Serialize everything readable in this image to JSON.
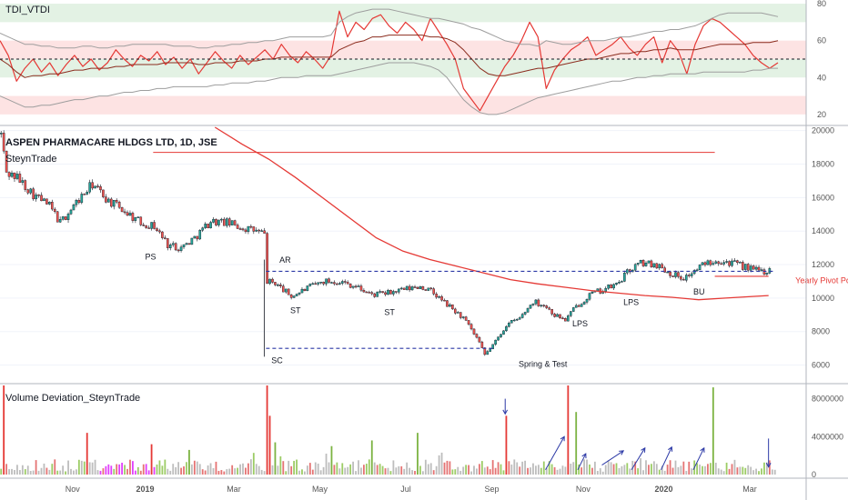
{
  "chart_data": [
    {
      "type": "line",
      "title": "TDI_VTDI",
      "ylim": [
        15,
        82
      ],
      "y_ticks": [
        20,
        40,
        60,
        80
      ],
      "bands": [
        {
          "from": 70,
          "to": 80,
          "color": "#e3f2e4"
        },
        {
          "from": 50,
          "to": 60,
          "color": "#fde3e3"
        },
        {
          "from": 40,
          "to": 50,
          "color": "#e3f2e4"
        },
        {
          "from": 20,
          "to": 30,
          "color": "#fde3e3"
        }
      ],
      "midline": 50,
      "series": [
        {
          "color": "#e53935",
          "values": [
            60,
            52,
            38,
            45,
            50,
            43,
            48,
            41,
            47,
            52,
            46,
            50,
            44,
            48,
            55,
            50,
            46,
            52,
            49,
            54,
            47,
            51,
            45,
            50,
            42,
            48,
            54,
            49,
            45,
            52,
            47,
            51,
            55,
            50,
            58,
            52,
            48,
            54,
            50,
            45,
            52,
            76,
            62,
            70,
            66,
            72,
            74,
            68,
            64,
            70,
            66,
            60,
            72,
            65,
            58,
            50,
            34,
            28,
            22,
            30,
            38,
            46,
            52,
            60,
            70,
            62,
            34,
            44,
            50,
            55,
            58,
            62,
            52,
            55,
            58,
            62,
            56,
            52,
            58,
            62,
            48,
            60,
            54,
            42,
            58,
            68,
            72,
            70,
            66,
            62,
            58,
            52,
            48,
            45,
            48
          ]
        },
        {
          "color": "#8b2c1e",
          "values": [
            50,
            47,
            43,
            40,
            41,
            41,
            42,
            42,
            43,
            44,
            44,
            45,
            45,
            45,
            46,
            46,
            47,
            47,
            47,
            47,
            48,
            48,
            48,
            48,
            47,
            47,
            48,
            48,
            48,
            49,
            49,
            49,
            50,
            50,
            51,
            51,
            51,
            51,
            51,
            51,
            51,
            55,
            57,
            59,
            60,
            62,
            62,
            63,
            63,
            63,
            63,
            63,
            62,
            62,
            61,
            59,
            55,
            50,
            45,
            42,
            41,
            41,
            42,
            43,
            44,
            45,
            45,
            46,
            47,
            48,
            49,
            50,
            50,
            51,
            52,
            53,
            53,
            54,
            54,
            55,
            55,
            56,
            55,
            55,
            55,
            56,
            57,
            58,
            58,
            58,
            58,
            59,
            59,
            59,
            60
          ]
        },
        {
          "color": "#9e9e9e",
          "values": [
            64,
            62,
            60,
            58,
            58,
            57,
            57,
            56,
            56,
            56,
            57,
            57,
            56,
            56,
            57,
            57,
            58,
            58,
            58,
            58,
            58,
            57,
            57,
            57,
            56,
            56,
            57,
            57,
            58,
            58,
            59,
            59,
            60,
            60,
            61,
            62,
            62,
            62,
            62,
            62,
            63,
            70,
            73,
            75,
            76,
            77,
            77,
            77,
            76,
            75,
            74,
            73,
            72,
            72,
            71,
            70,
            69,
            67,
            66,
            64,
            62,
            60,
            59,
            58,
            58,
            57,
            60,
            59,
            58,
            58,
            59,
            60,
            60,
            60,
            61,
            62,
            62,
            63,
            64,
            65,
            65,
            66,
            66,
            67,
            68,
            70,
            72,
            74,
            75,
            75,
            75,
            75,
            75,
            74,
            73
          ]
        },
        {
          "color": "#9e9e9e",
          "values": [
            30,
            28,
            26,
            24,
            24,
            25,
            25,
            26,
            27,
            28,
            28,
            29,
            30,
            30,
            31,
            32,
            32,
            33,
            33,
            34,
            34,
            35,
            35,
            35,
            35,
            35,
            36,
            36,
            37,
            37,
            37,
            38,
            38,
            39,
            40,
            40,
            40,
            41,
            41,
            41,
            41,
            42,
            43,
            44,
            45,
            46,
            47,
            48,
            48,
            48,
            48,
            47,
            46,
            44,
            40,
            34,
            28,
            24,
            21,
            20,
            20,
            21,
            23,
            25,
            27,
            29,
            30,
            31,
            32,
            33,
            34,
            35,
            36,
            37,
            38,
            38,
            39,
            40,
            40,
            41,
            41,
            42,
            42,
            42,
            42,
            43,
            43,
            43,
            43,
            43,
            43,
            44,
            44,
            45,
            45
          ]
        }
      ]
    },
    {
      "type": "candlestick",
      "title": "ASPEN PHARMACARE HLDGS LTD, 1D, JSE",
      "subtitle": "SteynTrade",
      "ylim": [
        5000,
        20200
      ],
      "y_ticks": [
        6000,
        8000,
        10000,
        12000,
        14000,
        16000,
        18000,
        20000
      ],
      "x_labels": [
        "Nov",
        "2019",
        "Mar",
        "May",
        "Jul",
        "Sep",
        "Nov",
        "2020",
        "Mar"
      ],
      "path": [
        [
          0,
          19800
        ],
        [
          2,
          17500
        ],
        [
          6,
          17200
        ],
        [
          12,
          16200
        ],
        [
          18,
          15500
        ],
        [
          22,
          14500
        ],
        [
          28,
          15700
        ],
        [
          34,
          16800
        ],
        [
          40,
          15800
        ],
        [
          46,
          15200
        ],
        [
          52,
          14500
        ],
        [
          57,
          14300
        ],
        [
          62,
          13200
        ],
        [
          67,
          13000
        ],
        [
          72,
          13600
        ],
        [
          78,
          14600
        ],
        [
          84,
          14500
        ],
        [
          90,
          14200
        ],
        [
          95,
          14000
        ],
        [
          98,
          13800
        ],
        [
          99,
          11000
        ],
        [
          102,
          10900
        ],
        [
          108,
          10100
        ],
        [
          114,
          10600
        ],
        [
          120,
          11000
        ],
        [
          126,
          11000
        ],
        [
          132,
          10700
        ],
        [
          138,
          10200
        ],
        [
          144,
          10300
        ],
        [
          150,
          10500
        ],
        [
          156,
          10700
        ],
        [
          160,
          10400
        ],
        [
          166,
          9600
        ],
        [
          172,
          8800
        ],
        [
          177,
          7600
        ],
        [
          180,
          6600
        ],
        [
          184,
          7400
        ],
        [
          188,
          8400
        ],
        [
          193,
          8800
        ],
        [
          198,
          9800
        ],
        [
          202,
          9600
        ],
        [
          206,
          9000
        ],
        [
          210,
          8700
        ],
        [
          214,
          9500
        ],
        [
          219,
          10200
        ],
        [
          224,
          10500
        ],
        [
          229,
          10800
        ],
        [
          234,
          11700
        ],
        [
          238,
          12100
        ],
        [
          244,
          12000
        ],
        [
          249,
          11500
        ],
        [
          254,
          11200
        ],
        [
          258,
          11600
        ],
        [
          262,
          12100
        ],
        [
          266,
          12300
        ],
        [
          272,
          12100
        ],
        [
          276,
          11900
        ],
        [
          280,
          11700
        ],
        [
          284,
          11600
        ],
        [
          286,
          11700
        ]
      ],
      "ma": [
        [
          80,
          20200
        ],
        [
          90,
          19200
        ],
        [
          100,
          18300
        ],
        [
          110,
          17200
        ],
        [
          120,
          16000
        ],
        [
          130,
          14800
        ],
        [
          140,
          13600
        ],
        [
          150,
          12800
        ],
        [
          160,
          12300
        ],
        [
          170,
          11900
        ],
        [
          180,
          11500
        ],
        [
          190,
          11100
        ],
        [
          200,
          10850
        ],
        [
          210,
          10650
        ],
        [
          220,
          10450
        ],
        [
          230,
          10300
        ],
        [
          240,
          10150
        ],
        [
          250,
          10050
        ],
        [
          260,
          9900
        ],
        [
          270,
          10000
        ],
        [
          280,
          10100
        ],
        [
          286,
          10150
        ]
      ],
      "hlines": [
        {
          "price": 18700,
          "from": 57,
          "to": 266,
          "color": "#e53935",
          "dashed": false
        },
        {
          "price": 11600,
          "from": 99,
          "to": 288,
          "color": "#2c39a6",
          "dashed": true
        },
        {
          "price": 7000,
          "from": 99,
          "to": 184,
          "color": "#2c39a6",
          "dashed": true
        },
        {
          "price": 11300,
          "from": 266,
          "to": 286,
          "color": "#e53935",
          "dashed": false
        }
      ],
      "annotations": [
        {
          "label": "PS",
          "x": 54,
          "price": 12300,
          "color": "#131722"
        },
        {
          "label": "AR",
          "x": 104,
          "price": 12100,
          "color": "#131722"
        },
        {
          "label": "SC",
          "x": 101,
          "price": 6100,
          "color": "#131722"
        },
        {
          "label": "ST",
          "x": 108,
          "price": 9100,
          "color": "#131722"
        },
        {
          "label": "ST",
          "x": 143,
          "price": 9000,
          "color": "#131722"
        },
        {
          "label": "Spring & Test",
          "x": 193,
          "price": 5900,
          "color": "#131722"
        },
        {
          "label": "LPS",
          "x": 213,
          "price": 8300,
          "color": "#131722"
        },
        {
          "label": "LPS",
          "x": 232,
          "price": 9600,
          "color": "#131722"
        },
        {
          "label": "BU",
          "x": 258,
          "price": 10200,
          "color": "#131722"
        },
        {
          "label": "Yearly Pivot Point",
          "x": 296,
          "price": 10900,
          "color": "#e53935"
        }
      ]
    },
    {
      "type": "bar",
      "title": "Volume Deviation_SteynTrade",
      "ylim": [
        0,
        9400000
      ],
      "y_ticks": [
        0,
        4000000,
        8000000
      ],
      "y_tick_labels": [
        "0",
        "4000000",
        "8000000"
      ],
      "spikes": [
        {
          "x": 1,
          "value": 9400000,
          "color": "#e53935"
        },
        {
          "x": 99,
          "value": 9400000,
          "color": "#e53935"
        },
        {
          "x": 100,
          "value": 6200000,
          "color": "#e53935"
        },
        {
          "x": 102,
          "value": 3400000,
          "color": "#7cb342"
        },
        {
          "x": 123,
          "value": 3000000,
          "color": "#7cb342"
        },
        {
          "x": 138,
          "value": 3600000,
          "color": "#7cb342"
        },
        {
          "x": 155,
          "value": 4400000,
          "color": "#7cb342"
        },
        {
          "x": 188,
          "value": 6200000,
          "color": "#e53935"
        },
        {
          "x": 211,
          "value": 9400000,
          "color": "#e53935"
        },
        {
          "x": 214,
          "value": 6600000,
          "color": "#7cb342"
        },
        {
          "x": 265,
          "value": 9200000,
          "color": "#7cb342"
        },
        {
          "x": 32,
          "value": 4400000,
          "color": "#e53935"
        },
        {
          "x": 56,
          "value": 3200000,
          "color": "#e53935"
        },
        {
          "x": 70,
          "value": 2600000,
          "color": "#7cb342"
        }
      ],
      "arrows": [
        {
          "x1": 188,
          "v1": 8000000,
          "x2": 188,
          "v2": 6400000
        },
        {
          "x1": 203,
          "v1": 500000,
          "x2": 210,
          "v2": 4000000
        },
        {
          "x1": 215,
          "v1": 500000,
          "x2": 218,
          "v2": 2200000
        },
        {
          "x1": 224,
          "v1": 1000000,
          "x2": 232,
          "v2": 2500000
        },
        {
          "x1": 235,
          "v1": 500000,
          "x2": 240,
          "v2": 2800000
        },
        {
          "x1": 246,
          "v1": 500000,
          "x2": 250,
          "v2": 2900000
        },
        {
          "x1": 258,
          "v1": 500000,
          "x2": 262,
          "v2": 2800000
        },
        {
          "x1": 286,
          "v1": 3800000,
          "x2": 286,
          "v2": 800000
        }
      ]
    }
  ]
}
